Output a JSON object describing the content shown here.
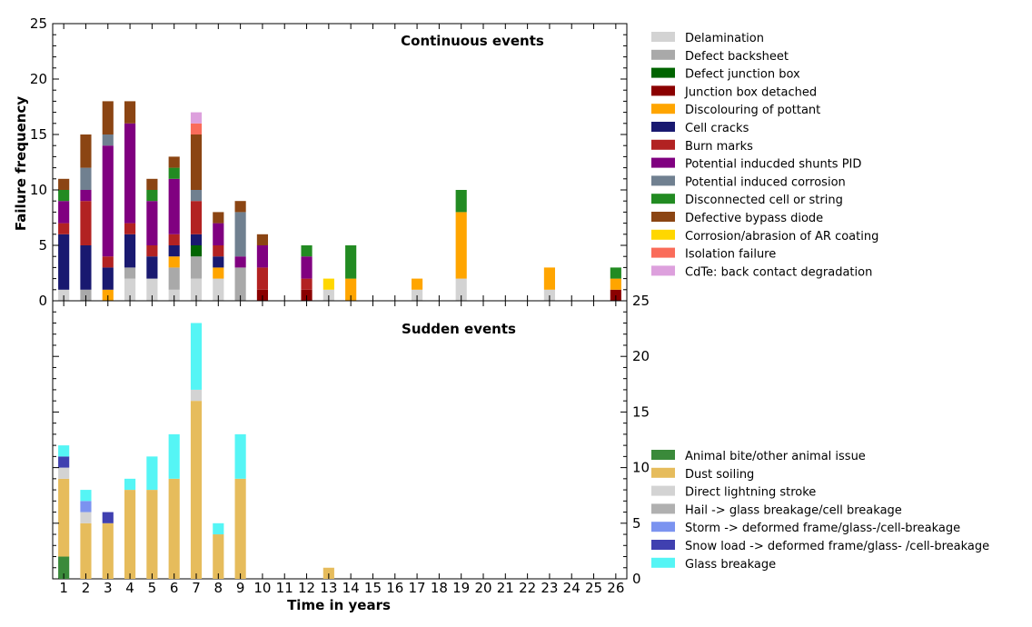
{
  "chart_data": {
    "type": "bar",
    "stacked": true,
    "xlabel": "Time in years",
    "ylabel": "Failure frequency",
    "categories": [
      "1",
      "2",
      "3",
      "4",
      "5",
      "6",
      "7",
      "8",
      "9",
      "10",
      "11",
      "12",
      "13",
      "14",
      "15",
      "16",
      "17",
      "18",
      "19",
      "20",
      "21",
      "22",
      "23",
      "24",
      "25",
      "26"
    ],
    "panels": [
      {
        "title": "Continuous events",
        "ylim": [
          0,
          25
        ],
        "yticks": [
          0,
          5,
          10,
          15,
          20,
          25
        ],
        "y_axis_side": "left",
        "legend_position": "right",
        "series": [
          {
            "name": "Delamination",
            "color": "#d3d3d3",
            "values": [
              1,
              0,
              0,
              2,
              2,
              1,
              2,
              2,
              0,
              0,
              0,
              0,
              1,
              0,
              0,
              0,
              1,
              0,
              2,
              0,
              0,
              0,
              1,
              0,
              0,
              0
            ]
          },
          {
            "name": "Defect backsheet",
            "color": "#a9a9a9",
            "values": [
              0,
              1,
              0,
              1,
              0,
              2,
              2,
              0,
              3,
              0,
              0,
              0,
              0,
              0,
              0,
              0,
              0,
              0,
              0,
              0,
              0,
              0,
              0,
              0,
              0,
              0
            ]
          },
          {
            "name": "Defect junction box",
            "color": "#006400",
            "values": [
              0,
              0,
              0,
              0,
              0,
              0,
              1,
              0,
              0,
              0,
              0,
              0,
              0,
              0,
              0,
              0,
              0,
              0,
              0,
              0,
              0,
              0,
              0,
              0,
              0,
              0
            ]
          },
          {
            "name": "Junction box detached",
            "color": "#8b0000",
            "values": [
              0,
              0,
              0,
              0,
              0,
              0,
              0,
              0,
              0,
              1,
              0,
              1,
              0,
              0,
              0,
              0,
              0,
              0,
              0,
              0,
              0,
              0,
              0,
              0,
              0,
              1
            ]
          },
          {
            "name": "Discolouring of pottant",
            "color": "#ffa500",
            "values": [
              0,
              0,
              1,
              0,
              0,
              1,
              0,
              1,
              0,
              0,
              0,
              0,
              0,
              2,
              0,
              0,
              1,
              0,
              6,
              0,
              0,
              0,
              2,
              0,
              0,
              1
            ]
          },
          {
            "name": "Cell cracks",
            "color": "#191970",
            "values": [
              5,
              4,
              2,
              3,
              2,
              1,
              1,
              1,
              0,
              0,
              0,
              0,
              0,
              0,
              0,
              0,
              0,
              0,
              0,
              0,
              0,
              0,
              0,
              0,
              0,
              0
            ]
          },
          {
            "name": "Burn marks",
            "color": "#b22222",
            "values": [
              1,
              4,
              1,
              1,
              1,
              1,
              3,
              1,
              0,
              2,
              0,
              1,
              0,
              0,
              0,
              0,
              0,
              0,
              0,
              0,
              0,
              0,
              0,
              0,
              0,
              0
            ]
          },
          {
            "name": "Potential inducded shunts PID",
            "color": "#800080",
            "values": [
              2,
              1,
              10,
              9,
              4,
              5,
              0,
              2,
              1,
              2,
              0,
              2,
              0,
              0,
              0,
              0,
              0,
              0,
              0,
              0,
              0,
              0,
              0,
              0,
              0,
              0
            ]
          },
          {
            "name": "Potential induced corrosion",
            "color": "#708090",
            "values": [
              0,
              2,
              1,
              0,
              0,
              0,
              1,
              0,
              4,
              0,
              0,
              0,
              0,
              0,
              0,
              0,
              0,
              0,
              0,
              0,
              0,
              0,
              0,
              0,
              0,
              0
            ]
          },
          {
            "name": "Disconnected cell or string",
            "color": "#228b22",
            "values": [
              1,
              0,
              0,
              0,
              1,
              1,
              0,
              0,
              0,
              0,
              0,
              1,
              0,
              3,
              0,
              0,
              0,
              0,
              2,
              0,
              0,
              0,
              0,
              0,
              0,
              1
            ]
          },
          {
            "name": "Defective bypass diode",
            "color": "#8b4513",
            "values": [
              1,
              3,
              3,
              2,
              1,
              1,
              5,
              1,
              1,
              1,
              0,
              0,
              0,
              0,
              0,
              0,
              0,
              0,
              0,
              0,
              0,
              0,
              0,
              0,
              0,
              0
            ]
          },
          {
            "name": "Corrosion/abrasion of AR coating",
            "color": "#ffd700",
            "values": [
              0,
              0,
              0,
              0,
              0,
              0,
              0,
              0,
              0,
              0,
              0,
              0,
              1,
              0,
              0,
              0,
              0,
              0,
              0,
              0,
              0,
              0,
              0,
              0,
              0,
              0
            ]
          },
          {
            "name": "Isolation failure",
            "color": "#fa6c5a",
            "values": [
              0,
              0,
              0,
              0,
              0,
              0,
              1,
              0,
              0,
              0,
              0,
              0,
              0,
              0,
              0,
              0,
              0,
              0,
              0,
              0,
              0,
              0,
              0,
              0,
              0,
              0
            ]
          },
          {
            "name": "CdTe: back contact degradation",
            "color": "#dda0dd",
            "values": [
              0,
              0,
              0,
              0,
              0,
              0,
              1,
              0,
              0,
              0,
              0,
              0,
              0,
              0,
              0,
              0,
              0,
              0,
              0,
              0,
              0,
              0,
              0,
              0,
              0,
              0
            ]
          }
        ]
      },
      {
        "title": "Sudden events",
        "ylim": [
          0,
          25
        ],
        "yticks": [
          0,
          5,
          10,
          15,
          20,
          25
        ],
        "y_axis_side": "right",
        "legend_position": "right",
        "series": [
          {
            "name": "Animal bite/other animal issue",
            "color": "#3a8a3a",
            "values": [
              2,
              0,
              0,
              0,
              0,
              0,
              0,
              0,
              0,
              0,
              0,
              0,
              0,
              0,
              0,
              0,
              0,
              0,
              0,
              0,
              0,
              0,
              0,
              0,
              0,
              0
            ]
          },
          {
            "name": "Dust soiling",
            "color": "#e6bc5c",
            "values": [
              7,
              5,
              5,
              8,
              8,
              9,
              16,
              4,
              9,
              0,
              0,
              0,
              1,
              0,
              0,
              0,
              0,
              0,
              0,
              0,
              0,
              0,
              0,
              0,
              0,
              0
            ]
          },
          {
            "name": "Direct lightning stroke",
            "color": "#d3d3d3",
            "values": [
              1,
              1,
              0,
              0,
              0,
              0,
              1,
              0,
              0,
              0,
              0,
              0,
              0,
              0,
              0,
              0,
              0,
              0,
              0,
              0,
              0,
              0,
              0,
              0,
              0,
              0
            ]
          },
          {
            "name": "Hail -> glass breakage/cell breakage",
            "color": "#b0b0b0",
            "values": [
              0,
              0,
              0,
              0,
              0,
              0,
              0,
              0,
              0,
              0,
              0,
              0,
              0,
              0,
              0,
              0,
              0,
              0,
              0,
              0,
              0,
              0,
              0,
              0,
              0,
              0
            ]
          },
          {
            "name": "Storm -> deformed frame/glass-/cell-breakage",
            "color": "#7b93f0",
            "values": [
              0,
              1,
              0,
              0,
              0,
              0,
              0,
              0,
              0,
              0,
              0,
              0,
              0,
              0,
              0,
              0,
              0,
              0,
              0,
              0,
              0,
              0,
              0,
              0,
              0,
              0
            ]
          },
          {
            "name": "Snow load -> deformed frame/glass- /cell-breakage",
            "color": "#4040b0",
            "values": [
              1,
              0,
              1,
              0,
              0,
              0,
              0,
              0,
              0,
              0,
              0,
              0,
              0,
              0,
              0,
              0,
              0,
              0,
              0,
              0,
              0,
              0,
              0,
              0,
              0,
              0
            ]
          },
          {
            "name": "Glass breakage",
            "color": "#55f5f5",
            "values": [
              1,
              1,
              0,
              1,
              3,
              4,
              6,
              1,
              4,
              0,
              0,
              0,
              0,
              0,
              0,
              0,
              0,
              0,
              0,
              0,
              0,
              0,
              0,
              0,
              0,
              0
            ]
          }
        ]
      }
    ]
  }
}
